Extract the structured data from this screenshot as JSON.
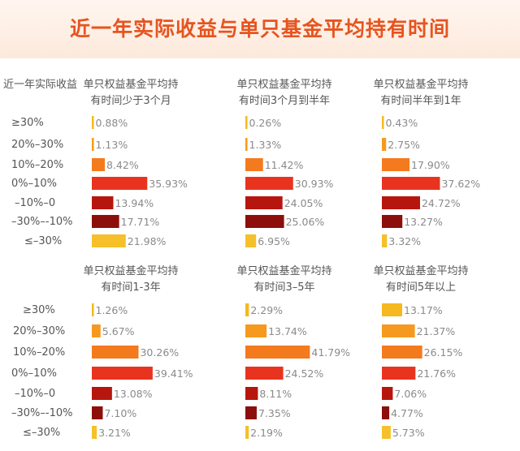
{
  "title": "近一年实际收益与单只基金平均持有时间",
  "chart_data": {
    "type": "bar",
    "orientation": "horizontal",
    "title": "近一年实际收益与单只基金平均持有时间",
    "ylabel": "近一年实际收益",
    "categories": [
      "≥30%",
      "20%–30%",
      "10%–20%",
      "0%–10%",
      "–10%–0",
      "–30%–-10%",
      "≤–30%"
    ],
    "colors": [
      "#f5b820",
      "#f59a1e",
      "#f47a1e",
      "#e8341f",
      "#b6160e",
      "#8c0f0b",
      "#f5c02a"
    ],
    "panels": [
      {
        "title_lines": [
          "单只权益基金平均持",
          "有时间少于3个月"
        ],
        "values": [
          0.88,
          1.13,
          8.42,
          35.93,
          13.94,
          17.71,
          21.98
        ],
        "labels": [
          "0.88%",
          "1.13%",
          "8.42%",
          "35.93%",
          "13.94%",
          "17.71%",
          "21.98%"
        ]
      },
      {
        "title_lines": [
          "单只权益基金平均持",
          "有时间3个月到半年"
        ],
        "values": [
          0.26,
          1.33,
          11.42,
          30.93,
          24.05,
          25.06,
          6.95
        ],
        "labels": [
          "0.26%",
          "1.33%",
          "11.42%",
          "30.93%",
          "24.05%",
          "25.06%",
          "6.95%"
        ]
      },
      {
        "title_lines": [
          "单只权益基金平均持",
          "有时间半年到1年"
        ],
        "values": [
          0.43,
          2.75,
          17.9,
          37.62,
          24.72,
          13.27,
          3.32
        ],
        "labels": [
          "0.43%",
          "2.75%",
          "17.90%",
          "37.62%",
          "24.72%",
          "13.27%",
          "3.32%"
        ]
      },
      {
        "title_lines": [
          "单只权益基金平均持",
          "有时间1-3年"
        ],
        "values": [
          1.26,
          5.67,
          30.26,
          39.41,
          13.08,
          7.1,
          3.21
        ],
        "labels": [
          "1.26%",
          "5.67%",
          "30.26%",
          "39.41%",
          "13.08%",
          "7.10%",
          "3.21%"
        ]
      },
      {
        "title_lines": [
          "单只权益基金平均持",
          "有时间3–5年"
        ],
        "values": [
          2.29,
          13.74,
          41.79,
          24.52,
          8.11,
          7.35,
          2.19
        ],
        "labels": [
          "2.29%",
          "13.74%",
          "41.79%",
          "24.52%",
          "8.11%",
          "7.35%",
          "2.19%"
        ]
      },
      {
        "title_lines": [
          "单只权益基金平均持",
          "有时间5年以上"
        ],
        "values": [
          13.17,
          21.37,
          26.15,
          21.76,
          7.06,
          4.77,
          5.73
        ],
        "labels": [
          "13.17%",
          "21.37%",
          "26.15%",
          "21.76%",
          "7.06%",
          "4.77%",
          "5.73%"
        ]
      }
    ]
  }
}
